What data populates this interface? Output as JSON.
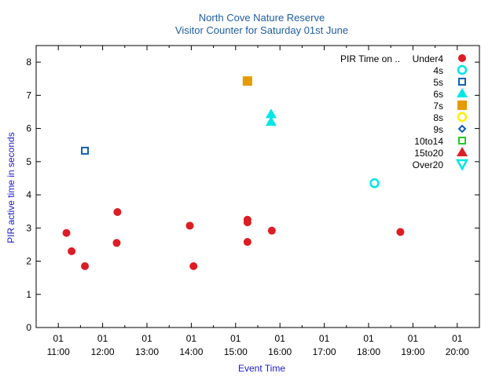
{
  "chart_data": {
    "type": "scatter",
    "title": [
      "North Cove Nature Reserve",
      "Visitor Counter for Saturday 01st June"
    ],
    "xlabel": "Event Time",
    "ylabel": "PIR active time in seconds",
    "xlim": [
      "10:30",
      "20:30"
    ],
    "ylim": [
      0,
      8.5
    ],
    "x_ticks": [
      {
        "day": "01",
        "time": "11:00"
      },
      {
        "day": "01",
        "time": "12:00"
      },
      {
        "day": "01",
        "time": "13:00"
      },
      {
        "day": "01",
        "time": "14:00"
      },
      {
        "day": "01",
        "time": "15:00"
      },
      {
        "day": "01",
        "time": "16:00"
      },
      {
        "day": "01",
        "time": "17:00"
      },
      {
        "day": "01",
        "time": "18:00"
      },
      {
        "day": "01",
        "time": "19:00"
      },
      {
        "day": "01",
        "time": "20:00"
      }
    ],
    "y_ticks": [
      0,
      1,
      2,
      3,
      4,
      5,
      6,
      7,
      8
    ],
    "legend_title": "PIR Time on ..",
    "legend_position": "top-right",
    "series": [
      {
        "name": "Under4",
        "marker": "filled-circle",
        "color": "#dd1c24",
        "points": [
          [
            "11:11",
            2.85
          ],
          [
            "11:18",
            2.3
          ],
          [
            "11:36",
            1.85
          ],
          [
            "12:19",
            2.55
          ],
          [
            "12:20",
            3.48
          ],
          [
            "13:58",
            3.07
          ],
          [
            "14:03",
            1.85
          ],
          [
            "15:16",
            3.25
          ],
          [
            "15:16",
            3.17
          ],
          [
            "15:16",
            2.58
          ],
          [
            "15:49",
            2.92
          ],
          [
            "18:43",
            2.88
          ]
        ]
      },
      {
        "name": "4s",
        "marker": "open-circle",
        "color": "#00e6e6",
        "points": [
          [
            "18:08",
            4.35
          ]
        ]
      },
      {
        "name": "5s",
        "marker": "open-square",
        "color": "#1060b0",
        "points": [
          [
            "11:36",
            5.33
          ]
        ]
      },
      {
        "name": "6s",
        "marker": "filled-triangle",
        "color": "#00e6e6",
        "points": [
          [
            "15:48",
            6.43
          ],
          [
            "15:48",
            6.2
          ]
        ]
      },
      {
        "name": "7s",
        "marker": "filled-square",
        "color": "#e69a00",
        "points": [
          [
            "15:16",
            7.43
          ]
        ]
      },
      {
        "name": "8s",
        "marker": "open-circle",
        "color": "#ffee00",
        "points": []
      },
      {
        "name": "9s",
        "marker": "open-diamond",
        "color": "#1060b0",
        "points": []
      },
      {
        "name": "10to14",
        "marker": "open-square",
        "color": "#22cc22",
        "points": []
      },
      {
        "name": "15to20",
        "marker": "filled-triangle",
        "color": "#dd1c24",
        "points": []
      },
      {
        "name": "Over20",
        "marker": "open-triangle-down",
        "color": "#00e6e6",
        "points": []
      }
    ]
  }
}
